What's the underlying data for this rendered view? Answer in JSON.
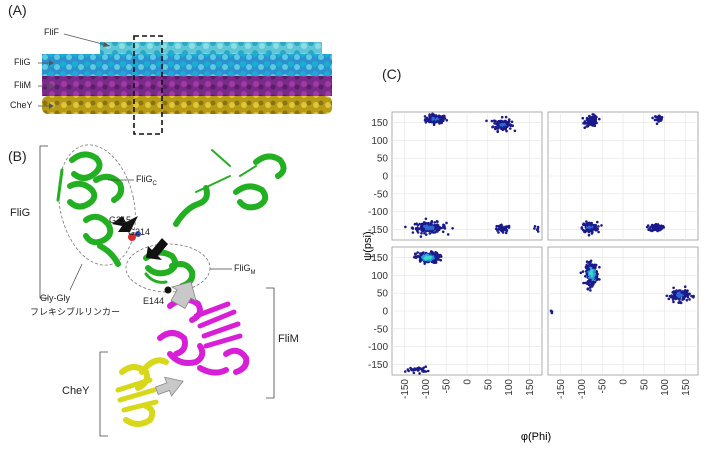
{
  "panels": {
    "a": "(A)",
    "b": "(B)",
    "c": "(C)"
  },
  "panel_a": {
    "labels": {
      "flif": "FliF",
      "flig": "FliG",
      "flim": "FliM",
      "chey": "CheY"
    },
    "colors": {
      "flif": "#3ab7c8",
      "flig": "#1a8fd0",
      "flim": "#8a2a8a",
      "chey": "#c9b02a"
    }
  },
  "panel_b": {
    "domain_labels": {
      "flig": "FliG",
      "flim": "FliM",
      "chey": "CheY"
    },
    "fligc": {
      "base": "FliG",
      "sub": "C"
    },
    "fligm": {
      "base": "FliG",
      "sub": "M"
    },
    "residues": {
      "g215": "G215",
      "g214": "G214",
      "e144": "E144"
    },
    "linker": {
      "line1": "Gly-Gly",
      "line2": "フレキシブルリンカー"
    },
    "colors": {
      "flig": "#22b022",
      "flim": "#d81fd8",
      "chey": "#d8d81a"
    }
  },
  "chart_data": {
    "type": "scatter",
    "title": "",
    "xlabel": "φ(Phi)",
    "ylabel": "ψ(psi)",
    "xlim": [
      -180,
      180
    ],
    "ylim": [
      -180,
      180
    ],
    "xticks": [
      "-150",
      "-100",
      "-50",
      "0",
      "50",
      "100",
      "150"
    ],
    "yticks": [
      "150",
      "100",
      "50",
      "0",
      "-50",
      "-100",
      "-150"
    ],
    "grid": true,
    "layout": "2x2 facets",
    "facets": [
      {
        "name": "top-left",
        "clusters": [
          {
            "phi": -75,
            "psi": 160,
            "spread": [
              25,
              12
            ],
            "n": 110
          },
          {
            "phi": 85,
            "psi": 145,
            "spread": [
              22,
              18
            ],
            "n": 110
          },
          {
            "phi": -90,
            "psi": -145,
            "spread": [
              40,
              15
            ],
            "n": 150
          },
          {
            "phi": 85,
            "psi": -150,
            "spread": [
              20,
              12
            ],
            "n": 40
          },
          {
            "phi": 165,
            "psi": -150,
            "spread": [
              8,
              8
            ],
            "n": 6
          }
        ]
      },
      {
        "name": "top-right",
        "clusters": [
          {
            "phi": -75,
            "psi": 155,
            "spread": [
              15,
              15
            ],
            "n": 90
          },
          {
            "phi": 85,
            "psi": 163,
            "spread": [
              12,
              8
            ],
            "n": 25
          },
          {
            "phi": -80,
            "psi": -145,
            "spread": [
              18,
              15
            ],
            "n": 130
          },
          {
            "phi": 80,
            "psi": -145,
            "spread": [
              15,
              10
            ],
            "n": 80
          }
        ]
      },
      {
        "name": "bottom-left",
        "clusters": [
          {
            "phi": -95,
            "psi": 150,
            "spread": [
              28,
              15
            ],
            "n": 170
          },
          {
            "phi": -120,
            "psi": -165,
            "spread": [
              25,
              8
            ],
            "n": 30
          }
        ]
      },
      {
        "name": "bottom-right",
        "clusters": [
          {
            "phi": -75,
            "psi": 105,
            "spread": [
              14,
              30
            ],
            "n": 200
          },
          {
            "phi": 135,
            "psi": 45,
            "spread": [
              25,
              18
            ],
            "n": 110
          },
          {
            "phi": -170,
            "psi": 0,
            "spread": [
              5,
              8
            ],
            "n": 4
          }
        ]
      }
    ]
  }
}
